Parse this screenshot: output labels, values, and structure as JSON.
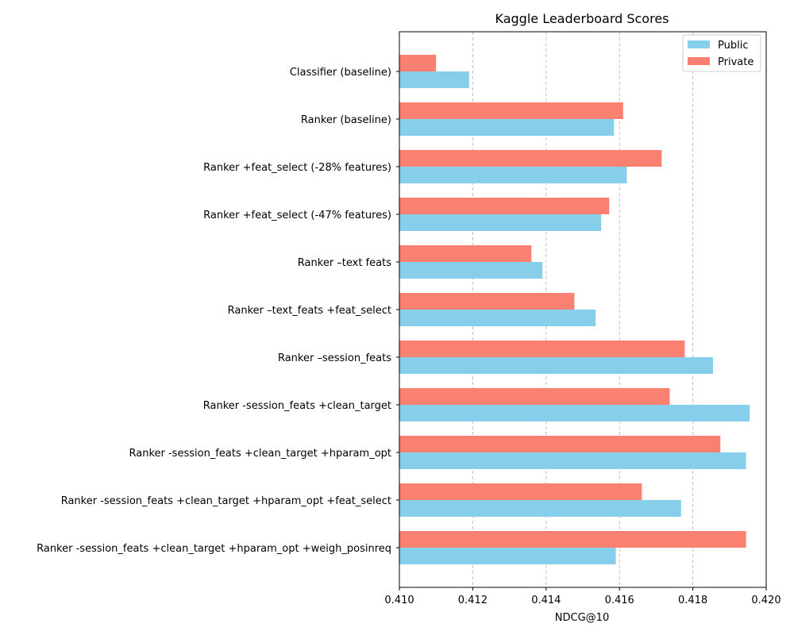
{
  "chart_data": {
    "type": "bar",
    "orientation": "horizontal",
    "title": "Kaggle Leaderboard Scores",
    "xlabel": "NDCG@10",
    "ylabel": "",
    "xlim": [
      0.41,
      0.42
    ],
    "xticks": [
      "0.410",
      "0.412",
      "0.414",
      "0.416",
      "0.418",
      "0.420"
    ],
    "grid": "x-dashed",
    "legend_position": "top-right",
    "categories": [
      "Classifier (baseline)",
      "Ranker (baseline)",
      "Ranker +feat_select (-28% features)",
      "Ranker +feat_select (-47% features)",
      "Ranker –text feats",
      "Ranker –text_feats +feat_select",
      "Ranker –session_feats",
      "Ranker -session_feats +clean_target",
      "Ranker -session_feats +clean_target +hparam_opt",
      "Ranker -session_feats +clean_target +hparam_opt +feat_select",
      "Ranker -session_feats +clean_target +hparam_opt +weigh_posinreq"
    ],
    "series": [
      {
        "name": "Public",
        "color": "#87ceeb",
        "values": [
          0.4119,
          0.41585,
          0.4162,
          0.4155,
          0.4139,
          0.41535,
          0.41855,
          0.41955,
          0.41945,
          0.41768,
          0.4159
        ]
      },
      {
        "name": "Private",
        "color": "#fa8072",
        "values": [
          0.411,
          0.4161,
          0.41715,
          0.41572,
          0.4136,
          0.41477,
          0.41778,
          0.41737,
          0.41875,
          0.41661,
          0.41945
        ]
      }
    ]
  }
}
